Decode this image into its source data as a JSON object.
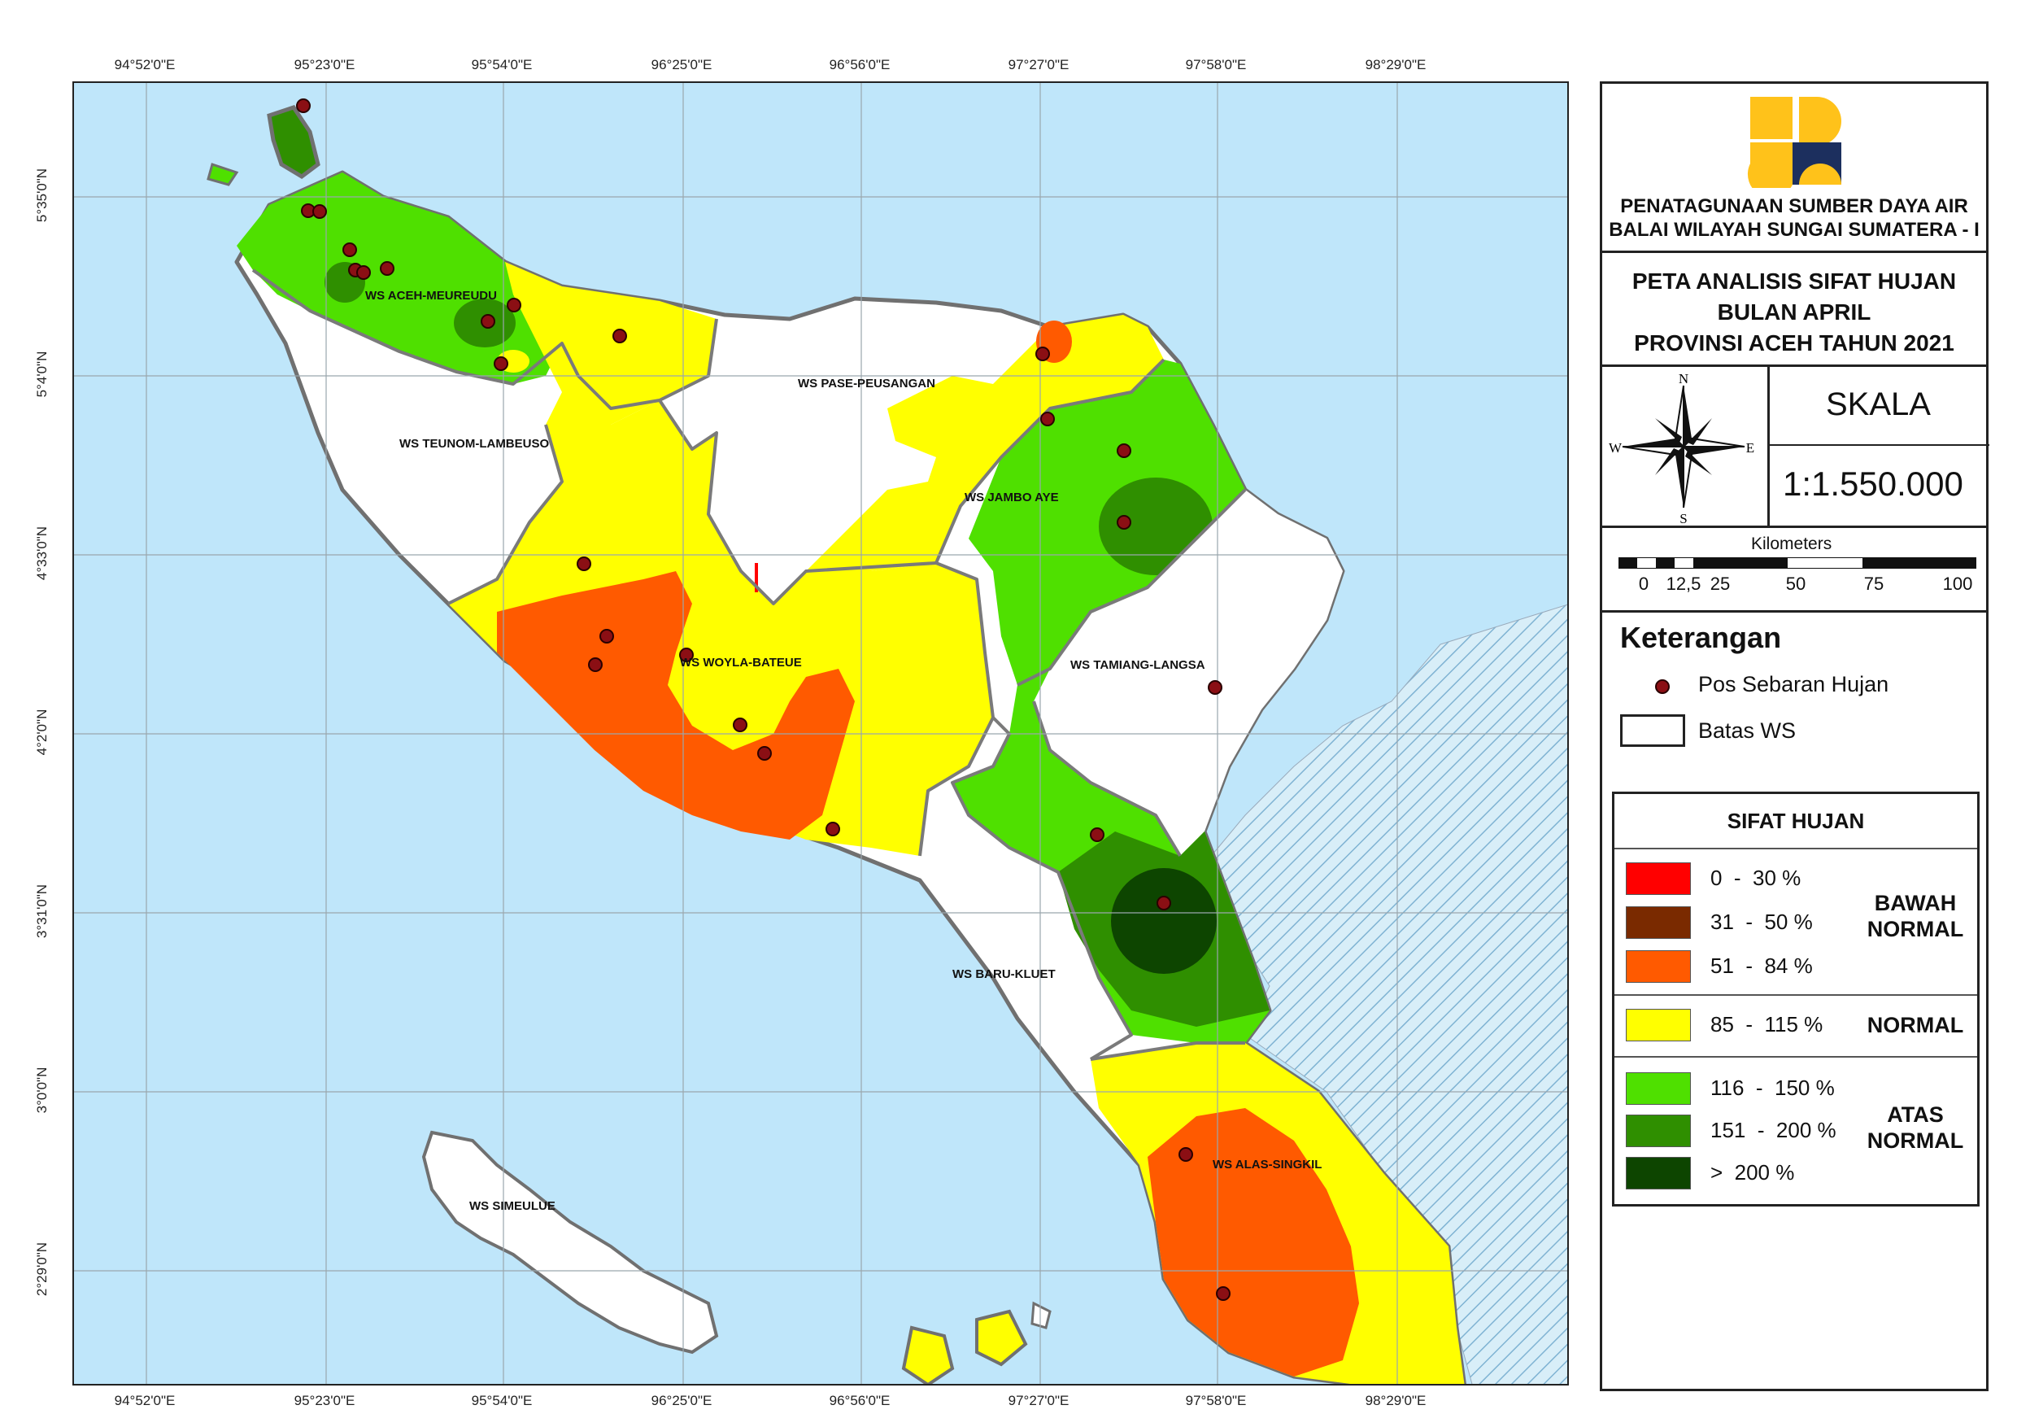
{
  "org": {
    "line1": "PENATAGUNAAN SUMBER DAYA AIR",
    "line2": "BALAI WILAYAH SUNGAI SUMATERA - I"
  },
  "title": {
    "line1": "PETA ANALISIS SIFAT HUJAN",
    "line2": "BULAN APRIL",
    "line3": "PROVINSI ACEH TAHUN 2021"
  },
  "compass": {
    "n": "N",
    "s": "S",
    "e": "E",
    "w": "W"
  },
  "scale": {
    "label": "SKALA",
    "value": "1:1.550.000",
    "units": "Kilometers",
    "ticks": [
      "0",
      "12,5",
      "25",
      "50",
      "75",
      "100"
    ]
  },
  "legend": {
    "title": "Keterangan",
    "station": "Pos Sebaran Hujan",
    "boundary": "Batas WS"
  },
  "sifat": {
    "title": "SIFAT HUJAN",
    "classes": [
      {
        "range": "0  -  30 %",
        "color": "#ff0000"
      },
      {
        "range": "31  -  50 %",
        "color": "#7a2a00"
      },
      {
        "range": "51  -  84 %",
        "color": "#ff5a00"
      },
      {
        "range": "85  -  115 %",
        "color": "#ffff00"
      },
      {
        "range": "116  -  150 %",
        "color": "#4fe000"
      },
      {
        "range": "151  -  200 %",
        "color": "#2f8f00"
      },
      {
        "range": ">  200 %",
        "color": "#0d4500"
      }
    ],
    "groups": {
      "bawah_line1": "BAWAH",
      "bawah_line2": "NORMAL",
      "normal": "NORMAL",
      "atas_line1": "ATAS",
      "atas_line2": "NORMAL"
    }
  },
  "coords": {
    "lon": [
      "94°52'0\"E",
      "95°23'0\"E",
      "95°54'0\"E",
      "96°25'0\"E",
      "96°56'0\"E",
      "97°27'0\"E",
      "97°58'0\"E",
      "98°29'0\"E"
    ],
    "lat": [
      "5°35'0\"N",
      "5°4'0\"N",
      "4°33'0\"N",
      "4°2'0\"N",
      "3°31'0\"N",
      "3°0'0\"N",
      "2°29'0\"N"
    ]
  },
  "watersheds": [
    "WS ACEH-MEUREUDU",
    "WS PASE-PEUSANGAN",
    "WS TEUNOM-LAMBEUSO",
    "WS JAMBO AYE",
    "WS TAMIANG-LANGSA",
    "WS WOYLA-BATEUE",
    "WS BARU-KLUET",
    "WS ALAS-SINGKIL",
    "WS SIMEULUE"
  ],
  "colors": {
    "sea": "#bfe6fa",
    "land": "#ffffff",
    "boundary": "#7a7a7a",
    "station": "#8b0f14",
    "logo_yellow": "#ffc21a",
    "logo_navy": "#1c2f5e"
  }
}
